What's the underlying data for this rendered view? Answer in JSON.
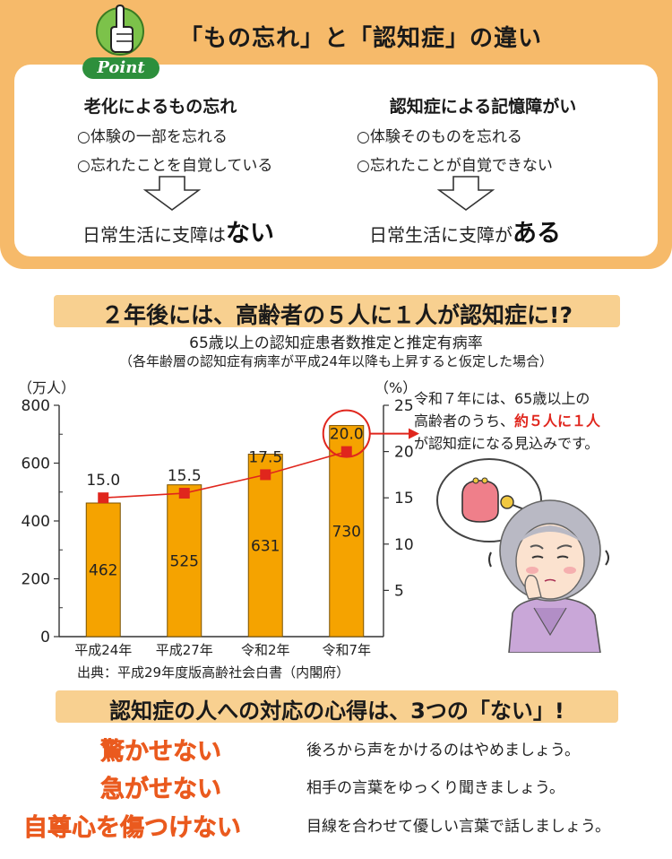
{
  "section1": {
    "title": "「もの忘れ」と「認知症」の違い",
    "point_label": "Point",
    "left": {
      "heading": "老化によるもの忘れ",
      "items": [
        "○体験の一部を忘れる",
        "○忘れたことを自覚している"
      ],
      "result_prefix": "日常生活に支障は",
      "result_emphasis": "ない"
    },
    "right": {
      "heading": "認知症による記憶障がい",
      "items": [
        "○体験そのものを忘れる",
        "○忘れたことが自覚できない"
      ],
      "result_prefix": "日常生活に支障が",
      "result_emphasis": "ある"
    }
  },
  "section2": {
    "banner": "２年後には、高齢者の５人に１人が認知症に!?",
    "subtitle": "65歳以上の認知症患者数推定と推定有病率",
    "note": "（各年齢層の認知症有病率が平成24年以降も上昇すると仮定した場合）",
    "source": "出典：平成29年度版高齢社会白書（内閣府）",
    "callout": {
      "line1": "令和７年には、65歳以上の",
      "line2_prefix": "高齢者のうち、",
      "line2_highlight": "約５人に１人",
      "line3": "が認知症になる見込みです。"
    },
    "colors": {
      "bar": "#f5a300",
      "line": "#e0261d",
      "highlight": "#e0261d"
    }
  },
  "chart_data": {
    "type": "bar",
    "categories": [
      "平成24年",
      "平成27年",
      "令和2年",
      "令和7年"
    ],
    "series": [
      {
        "type": "bar",
        "values": [
          462,
          525,
          631,
          730
        ],
        "axis": "left"
      },
      {
        "type": "line",
        "values": [
          15.0,
          15.5,
          17.5,
          20.0
        ],
        "axis": "right"
      }
    ],
    "ylabel": "（万人）",
    "y2label": "（%）",
    "ylim": [
      0,
      800
    ],
    "y2lim": [
      0,
      25
    ],
    "yticks": [
      "0",
      "200",
      "400",
      "600",
      "800"
    ],
    "y2ticks": [
      "5",
      "10",
      "15",
      "20",
      "25"
    ],
    "bar_labels": [
      "462",
      "525",
      "631",
      "730"
    ],
    "line_labels": [
      "15.0",
      "15.5",
      "17.5",
      "20.0"
    ],
    "highlight_index": 3,
    "grid": false
  },
  "section3": {
    "banner": "認知症の人への対応の心得は、3つの「ない」!",
    "tips": [
      {
        "heading": "驚かせない",
        "description": "後ろから声をかけるのはやめましょう。"
      },
      {
        "heading": "急がせない",
        "description": "相手の言葉をゆっくり聞きましょう。"
      },
      {
        "heading": "自尊心を傷つけない",
        "description": "目線を合わせて優しい言葉で話しましょう。"
      }
    ]
  }
}
